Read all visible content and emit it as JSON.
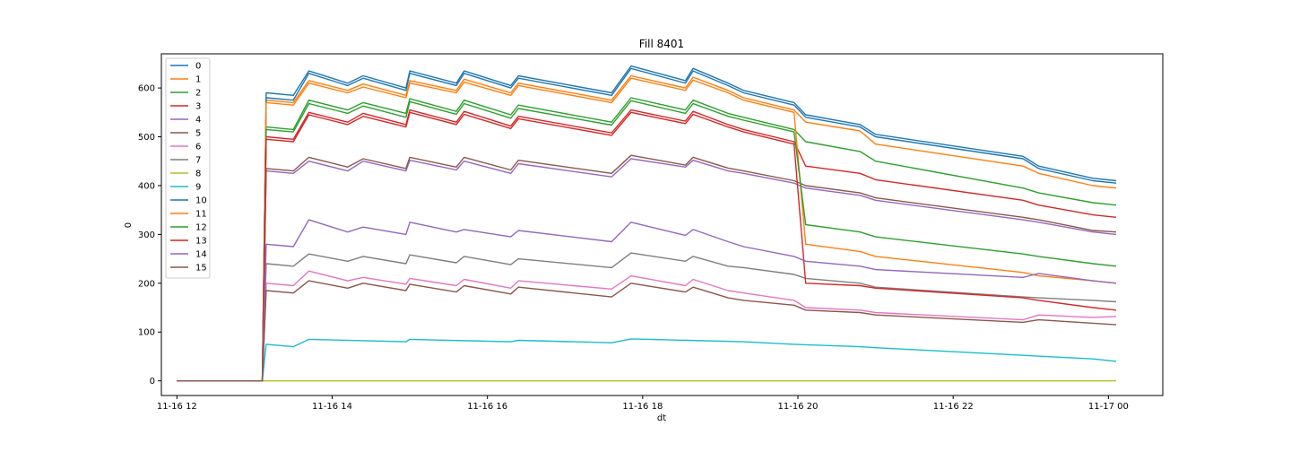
{
  "chart_data": {
    "type": "line",
    "title": "Fill 8401",
    "xlabel": "dt",
    "ylabel": "0",
    "x_ticks": [
      "11-16 12",
      "11-16 14",
      "11-16 16",
      "11-16 18",
      "11-16 20",
      "11-16 22",
      "11-17 00"
    ],
    "y_ticks": [
      "0",
      "100",
      "200",
      "300",
      "400",
      "500",
      "600"
    ],
    "x_unit": "hours since 11-16 00:00",
    "xlim": [
      11.8,
      24.7
    ],
    "ylim": [
      -30,
      670
    ],
    "legend_position": "upper-left",
    "grid": false,
    "series": [
      {
        "name": "0",
        "color": "#1f77b4",
        "x": [
          12.0,
          13.1,
          13.15,
          13.5,
          13.7,
          14.2,
          14.4,
          14.95,
          15.0,
          15.6,
          15.7,
          16.3,
          16.4,
          17.6,
          17.85,
          18.55,
          18.65,
          19.1,
          19.3,
          19.95,
          20.1,
          20.8,
          21.0,
          22.9,
          23.1,
          23.8,
          24.1
        ],
        "values": [
          0,
          0,
          590,
          585,
          635,
          610,
          625,
          600,
          635,
          610,
          635,
          605,
          625,
          590,
          645,
          615,
          640,
          610,
          595,
          570,
          545,
          525,
          505,
          460,
          440,
          415,
          410
        ]
      },
      {
        "name": "1",
        "color": "#ff7f0e",
        "x": [
          12.0,
          13.1,
          13.15,
          13.5,
          13.7,
          14.2,
          14.4,
          14.95,
          15.0,
          15.6,
          15.7,
          16.3,
          16.4,
          17.6,
          17.85,
          18.55,
          18.65,
          19.1,
          19.3,
          19.95,
          20.1,
          20.8,
          21.0,
          22.9,
          23.1,
          23.8,
          24.1
        ],
        "values": [
          0,
          0,
          575,
          570,
          615,
          595,
          608,
          585,
          615,
          595,
          618,
          590,
          610,
          575,
          625,
          600,
          622,
          595,
          580,
          555,
          530,
          512,
          485,
          440,
          425,
          400,
          395
        ]
      },
      {
        "name": "2",
        "color": "#2ca02c",
        "x": [
          12.0,
          13.1,
          13.15,
          13.5,
          13.7,
          14.2,
          14.4,
          14.95,
          15.0,
          15.6,
          15.7,
          16.3,
          16.4,
          17.6,
          17.85,
          18.55,
          18.65,
          19.1,
          19.3,
          19.95,
          20.1,
          20.8,
          21.0,
          22.9,
          23.1,
          23.8,
          24.1
        ],
        "values": [
          0,
          0,
          520,
          515,
          575,
          555,
          570,
          548,
          578,
          552,
          575,
          545,
          565,
          530,
          580,
          555,
          575,
          548,
          540,
          515,
          490,
          470,
          450,
          395,
          385,
          365,
          360
        ]
      },
      {
        "name": "3",
        "color": "#d62728",
        "x": [
          12.0,
          13.1,
          13.15,
          13.5,
          13.7,
          14.2,
          14.4,
          14.95,
          15.0,
          15.6,
          15.7,
          16.3,
          16.4,
          17.6,
          17.85,
          18.55,
          18.65,
          19.1,
          19.3,
          19.95,
          20.1,
          20.8,
          21.0,
          22.9,
          23.1,
          23.8,
          24.1
        ],
        "values": [
          0,
          0,
          500,
          495,
          550,
          530,
          548,
          525,
          555,
          530,
          552,
          522,
          542,
          508,
          555,
          532,
          552,
          525,
          515,
          490,
          440,
          425,
          412,
          370,
          360,
          340,
          335
        ]
      },
      {
        "name": "4",
        "color": "#9467bd",
        "x": [
          12.0,
          13.1,
          13.15,
          13.5,
          13.7,
          14.2,
          14.4,
          14.95,
          15.0,
          15.6,
          15.7,
          16.3,
          16.4,
          17.6,
          17.85,
          18.55,
          18.65,
          19.1,
          19.3,
          19.95,
          20.1,
          20.8,
          21.0,
          22.9,
          23.1,
          23.8,
          24.1
        ],
        "values": [
          0,
          0,
          430,
          425,
          450,
          430,
          450,
          430,
          452,
          432,
          450,
          425,
          445,
          418,
          455,
          438,
          452,
          430,
          425,
          405,
          395,
          380,
          370,
          330,
          325,
          305,
          300
        ]
      },
      {
        "name": "5",
        "color": "#8c564b",
        "x": [
          12.0,
          13.1,
          13.15,
          13.5,
          13.7,
          14.2,
          14.4,
          14.95,
          15.0,
          15.6,
          15.7,
          16.3,
          16.4,
          17.6,
          17.85,
          18.55,
          18.65,
          19.1,
          19.3,
          19.95,
          20.1,
          20.8,
          21.0,
          22.9,
          23.1,
          23.8,
          24.1
        ],
        "values": [
          0,
          0,
          435,
          430,
          458,
          438,
          455,
          435,
          458,
          438,
          458,
          432,
          452,
          425,
          462,
          442,
          458,
          436,
          430,
          410,
          400,
          385,
          375,
          335,
          330,
          308,
          305
        ]
      },
      {
        "name": "6",
        "color": "#e377c2",
        "x": [
          12.0,
          13.1,
          13.15,
          13.5,
          13.7,
          14.2,
          14.4,
          14.95,
          15.0,
          15.6,
          15.7,
          16.3,
          16.4,
          17.6,
          17.85,
          18.55,
          18.65,
          19.1,
          19.3,
          19.95,
          20.1,
          20.8,
          21.0,
          22.9,
          23.1,
          23.8,
          24.1
        ],
        "values": [
          0,
          0,
          200,
          195,
          225,
          205,
          212,
          198,
          210,
          195,
          208,
          190,
          205,
          188,
          215,
          195,
          208,
          185,
          180,
          165,
          150,
          145,
          140,
          125,
          135,
          130,
          132
        ]
      },
      {
        "name": "7",
        "color": "#7f7f7f",
        "x": [
          12.0,
          13.1,
          13.15,
          13.5,
          13.7,
          14.2,
          14.4,
          14.95,
          15.0,
          15.6,
          15.7,
          16.3,
          16.4,
          17.6,
          17.85,
          18.55,
          18.65,
          19.1,
          19.3,
          19.95,
          20.1,
          20.8,
          21.0,
          22.9,
          23.1,
          23.8,
          24.1
        ],
        "values": [
          0,
          0,
          240,
          235,
          260,
          245,
          255,
          240,
          258,
          242,
          255,
          238,
          250,
          232,
          262,
          245,
          255,
          235,
          232,
          218,
          210,
          200,
          192,
          172,
          170,
          165,
          162
        ]
      },
      {
        "name": "8",
        "color": "#bcbd22",
        "x": [
          12.0,
          13.1,
          13.15,
          24.1
        ],
        "values": [
          0,
          0,
          0,
          0
        ]
      },
      {
        "name": "9",
        "color": "#17becf",
        "x": [
          12.0,
          13.1,
          13.15,
          13.5,
          13.7,
          14.95,
          15.0,
          16.3,
          16.4,
          17.6,
          17.85,
          19.3,
          19.95,
          20.8,
          21.0,
          23.8,
          24.1
        ],
        "values": [
          0,
          0,
          75,
          70,
          85,
          80,
          85,
          80,
          83,
          78,
          86,
          80,
          75,
          70,
          68,
          45,
          40
        ]
      },
      {
        "name": "10",
        "color": "#1f77b4",
        "x": [
          12.0,
          13.1,
          13.15,
          13.5,
          13.7,
          14.2,
          14.4,
          14.95,
          15.0,
          15.6,
          15.7,
          16.3,
          16.4,
          17.6,
          17.85,
          18.55,
          18.65,
          19.1,
          19.3,
          19.95,
          20.1,
          20.8,
          21.0,
          22.9,
          23.1,
          23.8,
          24.1
        ],
        "values": [
          0,
          0,
          580,
          575,
          630,
          605,
          620,
          595,
          630,
          605,
          630,
          600,
          620,
          585,
          640,
          610,
          635,
          605,
          590,
          565,
          540,
          520,
          500,
          455,
          435,
          410,
          405
        ]
      },
      {
        "name": "11",
        "color": "#ff7f0e",
        "x": [
          12.0,
          13.1,
          13.15,
          13.5,
          13.7,
          14.2,
          14.4,
          14.95,
          15.0,
          15.6,
          15.7,
          16.3,
          16.4,
          17.6,
          17.85,
          18.55,
          18.65,
          19.1,
          19.3,
          19.95,
          20.1,
          20.8,
          21.0,
          22.9,
          23.1,
          23.8,
          24.1
        ],
        "values": [
          0,
          0,
          570,
          565,
          610,
          590,
          602,
          580,
          610,
          590,
          612,
          585,
          605,
          570,
          620,
          595,
          616,
          590,
          575,
          550,
          280,
          265,
          255,
          222,
          215,
          205,
          200
        ]
      },
      {
        "name": "12",
        "color": "#2ca02c",
        "x": [
          12.0,
          13.1,
          13.15,
          13.5,
          13.7,
          14.2,
          14.4,
          14.95,
          15.0,
          15.6,
          15.7,
          16.3,
          16.4,
          17.6,
          17.85,
          18.55,
          18.65,
          19.1,
          19.3,
          19.95,
          20.1,
          20.8,
          21.0,
          22.9,
          23.1,
          23.8,
          24.1
        ],
        "values": [
          0,
          0,
          515,
          510,
          568,
          548,
          563,
          540,
          572,
          546,
          568,
          538,
          558,
          524,
          574,
          548,
          568,
          542,
          534,
          510,
          320,
          305,
          295,
          260,
          255,
          240,
          235
        ]
      },
      {
        "name": "13",
        "color": "#d62728",
        "x": [
          12.0,
          13.1,
          13.15,
          13.5,
          13.7,
          14.2,
          14.4,
          14.95,
          15.0,
          15.6,
          15.7,
          16.3,
          16.4,
          17.6,
          17.85,
          18.55,
          18.65,
          19.1,
          19.3,
          19.95,
          20.1,
          20.8,
          21.0,
          22.9,
          23.1,
          23.8,
          24.1
        ],
        "values": [
          0,
          0,
          495,
          490,
          545,
          525,
          542,
          520,
          550,
          525,
          546,
          517,
          537,
          503,
          550,
          527,
          546,
          520,
          510,
          485,
          200,
          195,
          190,
          170,
          165,
          150,
          145
        ]
      },
      {
        "name": "14",
        "color": "#9467bd",
        "x": [
          12.0,
          13.1,
          13.15,
          13.5,
          13.7,
          14.2,
          14.4,
          14.95,
          15.0,
          15.6,
          15.7,
          16.3,
          16.4,
          17.6,
          17.85,
          18.55,
          18.65,
          19.1,
          19.3,
          19.95,
          20.1,
          20.8,
          21.0,
          22.9,
          23.1,
          23.8,
          24.1
        ],
        "values": [
          0,
          0,
          280,
          275,
          330,
          305,
          315,
          300,
          325,
          305,
          310,
          295,
          308,
          285,
          325,
          298,
          310,
          285,
          275,
          255,
          245,
          235,
          228,
          212,
          220,
          205,
          200
        ]
      },
      {
        "name": "15",
        "color": "#8c564b",
        "x": [
          12.0,
          13.1,
          13.15,
          13.5,
          13.7,
          14.2,
          14.4,
          14.95,
          15.0,
          15.6,
          15.7,
          16.3,
          16.4,
          17.6,
          17.85,
          18.55,
          18.65,
          19.1,
          19.3,
          19.95,
          20.1,
          20.8,
          21.0,
          22.9,
          23.1,
          23.8,
          24.1
        ],
        "values": [
          0,
          0,
          185,
          180,
          205,
          190,
          200,
          185,
          198,
          182,
          195,
          178,
          192,
          172,
          200,
          182,
          192,
          170,
          165,
          155,
          145,
          140,
          135,
          120,
          125,
          118,
          115
        ]
      }
    ]
  }
}
